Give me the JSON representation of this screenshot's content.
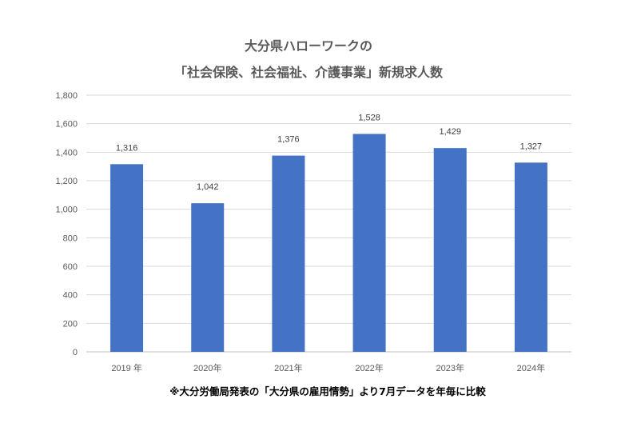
{
  "chart_data": {
    "type": "bar",
    "title_lines": [
      "大分県ハローワークの",
      "「社会保険、社会福祉、介護事業」新規求人数"
    ],
    "categories": [
      "2019 年",
      "2020年",
      "2021年",
      "2022年",
      "2023年",
      "2024年"
    ],
    "values": [
      1316,
      1042,
      1376,
      1528,
      1429,
      1327
    ],
    "data_labels": [
      "1,316",
      "1,042",
      "1,376",
      "1,528",
      "1,429",
      "1,327"
    ],
    "yticks": [
      "0",
      "200",
      "400",
      "600",
      "800",
      "1,000",
      "1,200",
      "1,400",
      "1,600",
      "1,800"
    ],
    "ylim": [
      0,
      1800
    ],
    "xlabel": "",
    "ylabel": "",
    "grid": true,
    "bar_color": "#4472C4",
    "footnote": "※大分労働局発表の「大分県の雇用情勢」より7月データを年毎に比較"
  }
}
